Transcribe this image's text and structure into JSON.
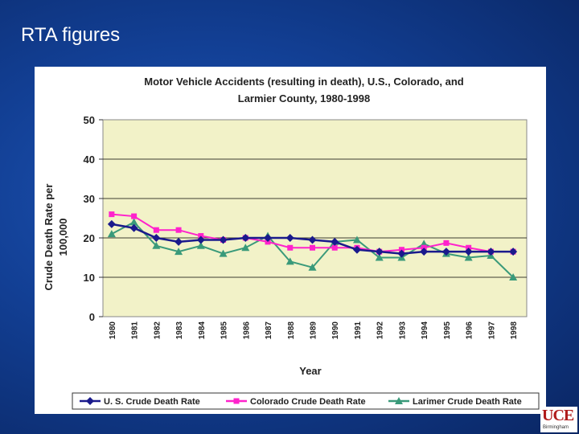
{
  "slide": {
    "title": "RTA figures"
  },
  "logo": {
    "mark": "UCE",
    "sub": "Birmingham"
  },
  "colors": {
    "us": "#1a1a8c",
    "colorado": "#ff22cc",
    "larimer": "#3a9a7a",
    "plot_bg": "#f2f2c8",
    "grid": "#000000"
  },
  "chart_data": {
    "type": "line",
    "title_line1": "Motor Vehicle Accidents (resulting in death), U.S., Colorado, and",
    "title_line2": "Larmier County, 1980-1998",
    "xlabel": "Year",
    "ylabel": "Crude Death Rate per 100,000",
    "ylabel_line1": "Crude Death Rate per",
    "ylabel_line2": "100,000",
    "ylim": [
      0,
      50
    ],
    "yticks": [
      "0",
      "10",
      "20",
      "30",
      "40",
      "50"
    ],
    "grid": true,
    "legend_position": "bottom",
    "x": [
      "1980",
      "1981",
      "1982",
      "1983",
      "1984",
      "1985",
      "1986",
      "1987",
      "1988",
      "1989",
      "1990",
      "1991",
      "1992",
      "1993",
      "1994",
      "1995",
      "1996",
      "1997",
      "1998"
    ],
    "series": [
      {
        "name": "U. S. Crude Death Rate",
        "key": "us",
        "marker": "diamond",
        "values": [
          23.5,
          22.5,
          20.0,
          19.0,
          19.5,
          19.5,
          20.0,
          20.0,
          20.0,
          19.5,
          19.0,
          17.0,
          16.5,
          16.0,
          16.5,
          16.5,
          16.5,
          16.5,
          16.5
        ]
      },
      {
        "name": "Colorado Crude Death Rate",
        "key": "colorado",
        "marker": "square",
        "values": [
          26.0,
          25.5,
          22.0,
          22.0,
          20.5,
          19.5,
          20.0,
          19.0,
          17.5,
          17.5,
          17.5,
          17.5,
          16.5,
          17.0,
          17.5,
          18.7,
          17.5,
          16.5,
          16.5
        ]
      },
      {
        "name": "Larimer Crude Death Rate",
        "key": "larimer",
        "marker": "triangle",
        "values": [
          21.0,
          24.0,
          18.0,
          16.5,
          18.0,
          16.0,
          17.5,
          20.5,
          14.0,
          12.5,
          19.0,
          19.5,
          15.0,
          15.0,
          18.5,
          16.0,
          15.0,
          15.5,
          10.0
        ]
      }
    ]
  }
}
